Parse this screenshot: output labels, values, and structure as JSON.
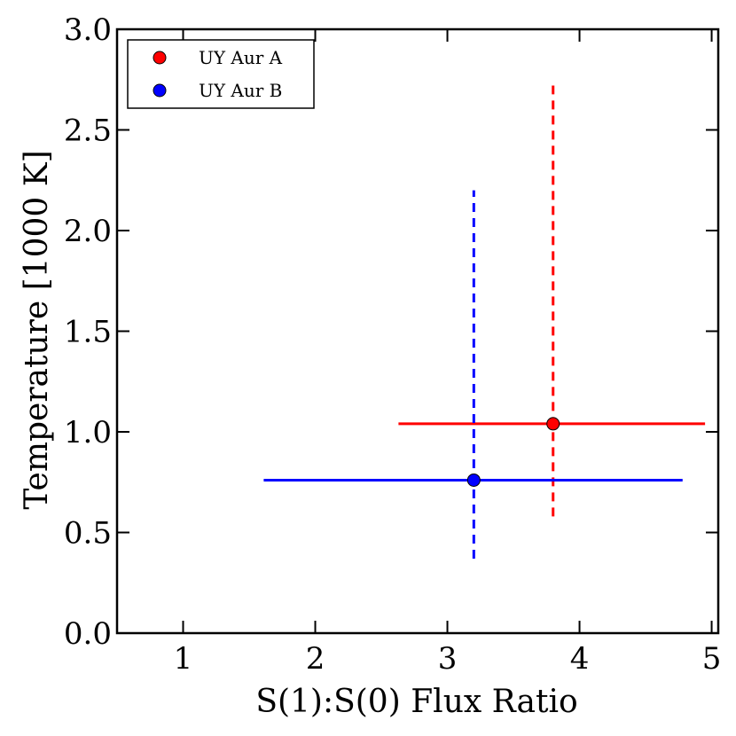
{
  "chart_data": {
    "type": "scatter",
    "title": "",
    "xlabel": "S(1):S(0) Flux Ratio",
    "ylabel": "Temperature [1000 K]",
    "xlim": [
      0.5,
      5.05
    ],
    "ylim": [
      0.0,
      3.0
    ],
    "xticks": [
      1,
      2,
      3,
      4,
      5
    ],
    "yticks": [
      0.0,
      0.5,
      1.0,
      1.5,
      2.0,
      2.5,
      3.0
    ],
    "xtick_labels": [
      "1",
      "2",
      "3",
      "4",
      "5"
    ],
    "ytick_labels": [
      "0.0",
      "0.5",
      "1.0",
      "1.5",
      "2.0",
      "2.5",
      "3.0"
    ],
    "legend_position": "top-left",
    "series": [
      {
        "name": "UY Aur A",
        "color": "#ff0000",
        "x": 3.8,
        "y": 1.04,
        "x_err": [
          2.63,
          4.95
        ],
        "y_err": [
          0.58,
          2.72
        ]
      },
      {
        "name": "UY Aur B",
        "color": "#0000ff",
        "x": 3.2,
        "y": 0.76,
        "x_err": [
          1.61,
          4.78
        ],
        "y_err": [
          0.37,
          2.2
        ]
      }
    ]
  }
}
